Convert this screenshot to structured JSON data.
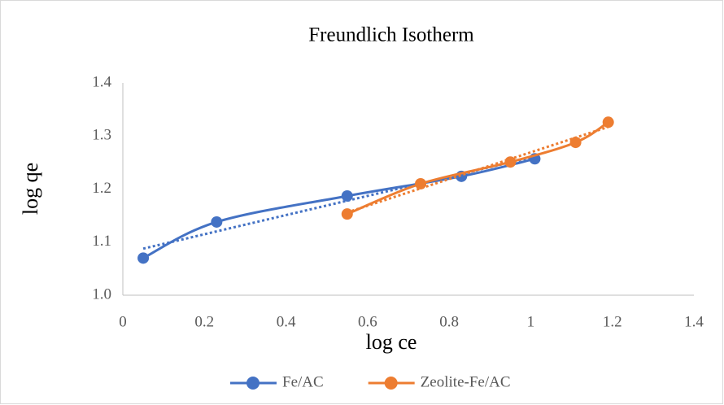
{
  "chart_data": {
    "type": "scatter",
    "title": "Freundlich Isotherm",
    "xlabel": "log ce",
    "ylabel": "log qe",
    "xlim": [
      0,
      1.4
    ],
    "xticks": [
      0,
      0.2,
      0.4,
      0.6,
      0.8,
      1,
      1.2,
      1.4
    ],
    "ylim": [
      1.0,
      1.4
    ],
    "yticks": [
      {
        "value": 1.0,
        "label": "1.0"
      },
      1.1,
      1.2,
      1.3,
      1.4
    ],
    "grid": false,
    "legend": "bottom",
    "series": [
      {
        "name": "Fe/AC",
        "color": "#4472c4",
        "trendline": "linear",
        "x": [
          0.05,
          0.23,
          0.55,
          0.83,
          1.01
        ],
        "values": [
          1.07,
          1.138,
          1.187,
          1.224,
          1.257
        ]
      },
      {
        "name": "Zeolite-Fe/AC",
        "color": "#ed7d31",
        "trendline": "linear",
        "x": [
          0.55,
          0.73,
          0.95,
          1.11,
          1.19
        ],
        "values": [
          1.153,
          1.21,
          1.251,
          1.288,
          1.326
        ]
      }
    ]
  }
}
